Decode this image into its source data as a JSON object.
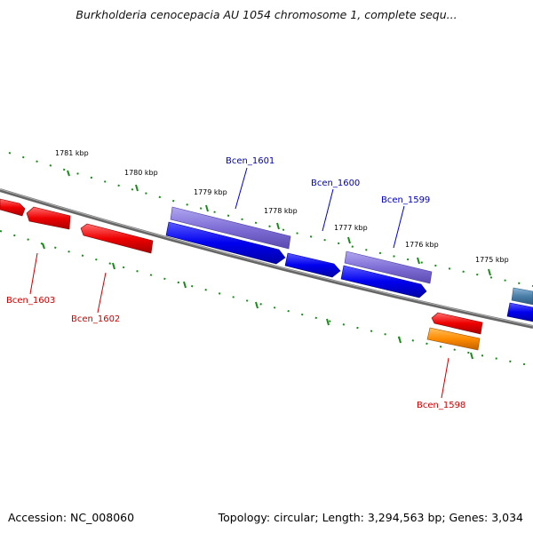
{
  "title": "Burkholderia cenocepacia AU 1054 chromosome 1, complete sequ...",
  "footer": {
    "accession": "Accession: NC_008060",
    "summary": "Topology: circular; Length: 3,294,563 bp; Genes: 3,034"
  },
  "colors": {
    "backbone": "#808080",
    "tick": "#1a8a1a",
    "forward_cds": "#0000ee",
    "forward_gene": "#7f6fd6",
    "reverse_cds": "#ee0000",
    "reverse_alt": "#ff8c00",
    "teal_gene": "#4a7fa8",
    "forward_label": "#0000bb",
    "reverse_label": "#cc0000"
  },
  "scale_labels": [
    "1781 kbp",
    "1780 kbp",
    "1779 kbp",
    "1778 kbp",
    "1777 kbp",
    "1776 kbp",
    "1775 kbp"
  ],
  "forward_labels": [
    "Bcen_1601",
    "Bcen_1600",
    "Bcen_1599"
  ],
  "reverse_labels": [
    "Bcen_1603",
    "Bcen_1602",
    "Bcen_1598"
  ]
}
